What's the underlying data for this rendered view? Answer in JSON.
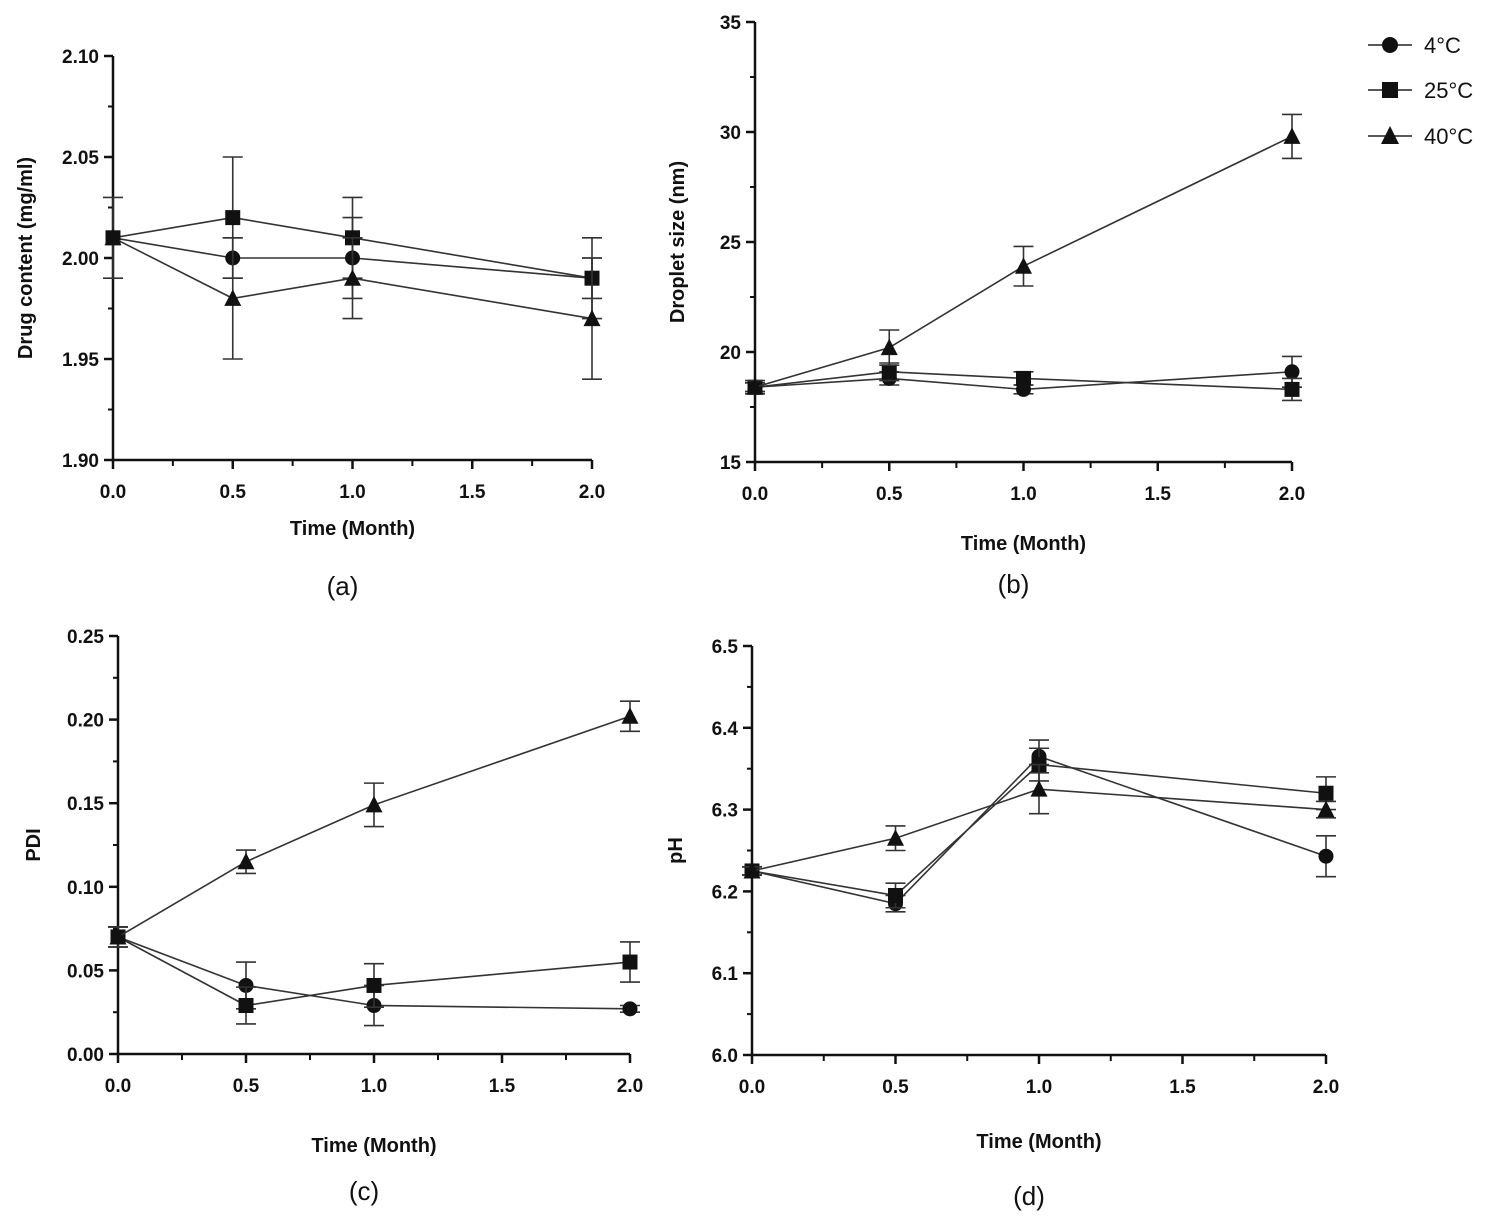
{
  "figure": {
    "legend": [
      {
        "marker": "circle",
        "label": "4°C"
      },
      {
        "marker": "square",
        "label": "25°C"
      },
      {
        "marker": "triangle",
        "label": "40°C"
      }
    ]
  },
  "chart_data": [
    {
      "type": "line",
      "panel_label": "(a)",
      "xlabel": "Time (Month)",
      "ylabel": "Drug content (mg/ml)",
      "xlim": [
        0,
        2
      ],
      "ylim": [
        1.9,
        2.1
      ],
      "xticks": [
        "0.0",
        "0.5",
        "1.0",
        "1.5",
        "2.0"
      ],
      "yticks": [
        "1.90",
        "1.95",
        "2.00",
        "2.05",
        "2.10"
      ],
      "x": [
        0,
        0.5,
        1,
        2
      ],
      "series": [
        {
          "name": "4°C",
          "marker": "circle",
          "values": [
            2.01,
            2.0,
            2.0,
            1.99
          ],
          "errors": [
            0.0,
            0.01,
            0.02,
            0.01
          ]
        },
        {
          "name": "25°C",
          "marker": "square",
          "values": [
            2.01,
            2.02,
            2.01,
            1.99
          ],
          "errors": [
            0.0,
            0.03,
            0.02,
            0.02
          ]
        },
        {
          "name": "40°C",
          "marker": "triangle",
          "values": [
            2.01,
            1.98,
            1.99,
            1.97
          ],
          "errors": [
            0.02,
            0.03,
            0.02,
            0.03
          ]
        }
      ]
    },
    {
      "type": "line",
      "panel_label": "(b)",
      "xlabel": "Time (Month)",
      "ylabel": "Droplet size (nm)",
      "xlim": [
        0,
        2
      ],
      "ylim": [
        15,
        35
      ],
      "xticks": [
        "0.0",
        "0.5",
        "1.0",
        "1.5",
        "2.0"
      ],
      "yticks": [
        "15",
        "20",
        "25",
        "30",
        "35"
      ],
      "x": [
        0,
        0.5,
        1,
        2
      ],
      "series": [
        {
          "name": "4°C",
          "marker": "circle",
          "values": [
            18.4,
            18.8,
            18.3,
            19.1
          ],
          "errors": [
            0.2,
            0.3,
            0.2,
            0.7
          ]
        },
        {
          "name": "25°C",
          "marker": "square",
          "values": [
            18.4,
            19.1,
            18.8,
            18.3
          ],
          "errors": [
            0.2,
            0.4,
            0.3,
            0.5
          ]
        },
        {
          "name": "40°C",
          "marker": "triangle",
          "values": [
            18.4,
            20.2,
            23.9,
            29.8
          ],
          "errors": [
            0.3,
            0.8,
            0.9,
            1.0
          ]
        }
      ]
    },
    {
      "type": "line",
      "panel_label": "(c)",
      "xlabel": "Time (Month)",
      "ylabel": "PDI",
      "xlim": [
        0,
        2
      ],
      "ylim": [
        0,
        0.25
      ],
      "xticks": [
        "0.0",
        "0.5",
        "1.0",
        "1.5",
        "2.0"
      ],
      "yticks": [
        "0.00",
        "0.05",
        "0.10",
        "0.15",
        "0.20",
        "0.25"
      ],
      "x": [
        0,
        0.5,
        1,
        2
      ],
      "series": [
        {
          "name": "4°C",
          "marker": "circle",
          "values": [
            0.07,
            0.041,
            0.029,
            0.027
          ],
          "errors": [
            0.006,
            0.014,
            0.012,
            0.002
          ]
        },
        {
          "name": "25°C",
          "marker": "square",
          "values": [
            0.07,
            0.029,
            0.041,
            0.055
          ],
          "errors": [
            0.006,
            0.011,
            0.013,
            0.012
          ]
        },
        {
          "name": "40°C",
          "marker": "triangle",
          "values": [
            0.07,
            0.115,
            0.149,
            0.202
          ],
          "errors": [
            0.006,
            0.007,
            0.013,
            0.009
          ]
        }
      ]
    },
    {
      "type": "line",
      "panel_label": "(d)",
      "xlabel": "Time (Month)",
      "ylabel": "pH",
      "xlim": [
        0,
        2
      ],
      "ylim": [
        6.0,
        6.5
      ],
      "xticks": [
        "0.0",
        "0.5",
        "1.0",
        "1.5",
        "2.0"
      ],
      "yticks": [
        "6.0",
        "6.1",
        "6.2",
        "6.3",
        "6.4",
        "6.5"
      ],
      "x": [
        0,
        0.5,
        1,
        2
      ],
      "series": [
        {
          "name": "4°C",
          "marker": "circle",
          "values": [
            6.225,
            6.185,
            6.365,
            6.243
          ],
          "errors": [
            0.005,
            0.01,
            0.02,
            0.025
          ]
        },
        {
          "name": "25°C",
          "marker": "square",
          "values": [
            6.225,
            6.195,
            6.355,
            6.32
          ],
          "errors": [
            0.005,
            0.015,
            0.02,
            0.02
          ]
        },
        {
          "name": "40°C",
          "marker": "triangle",
          "values": [
            6.225,
            6.265,
            6.325,
            6.3
          ],
          "errors": [
            0.005,
            0.015,
            0.03,
            0.01
          ]
        }
      ]
    }
  ]
}
